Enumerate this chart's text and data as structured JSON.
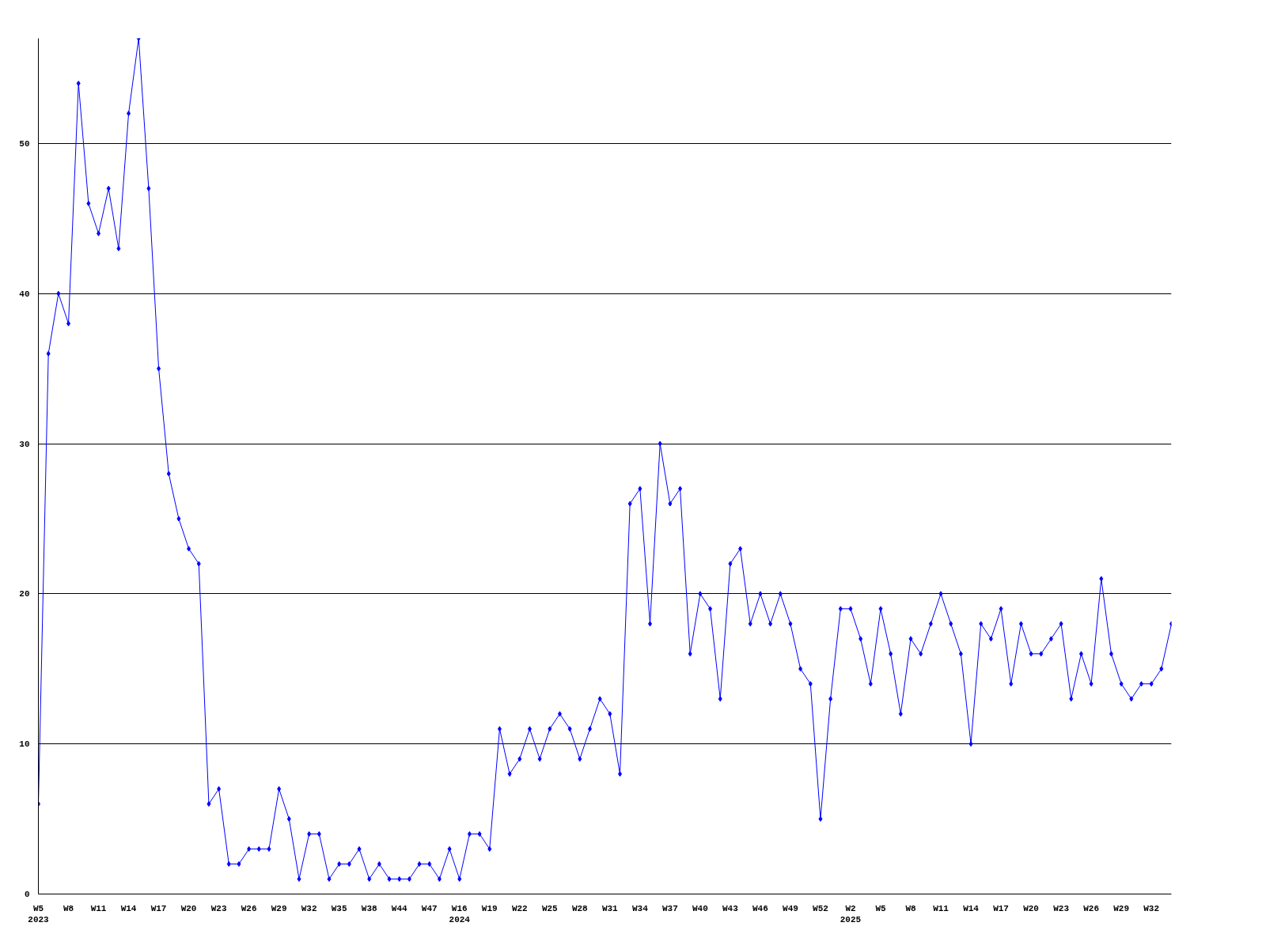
{
  "chart_data": {
    "type": "line",
    "categories": [
      "W5\n2023",
      null,
      null,
      "W8",
      null,
      null,
      "W11",
      null,
      null,
      "W14",
      null,
      null,
      "W17",
      null,
      null,
      "W20",
      null,
      null,
      "W23",
      null,
      null,
      "W26",
      null,
      null,
      "W29",
      null,
      null,
      "W32",
      null,
      null,
      "W35",
      null,
      null,
      "W38",
      null,
      null,
      "W44",
      null,
      null,
      "W47",
      null,
      null,
      "W16\n2024",
      null,
      null,
      "W19",
      null,
      null,
      "W22",
      null,
      null,
      "W25",
      null,
      null,
      "W28",
      null,
      null,
      "W31",
      null,
      null,
      "W34",
      null,
      null,
      "W37",
      null,
      null,
      "W40",
      null,
      null,
      "W43",
      null,
      null,
      "W46",
      null,
      null,
      "W49",
      null,
      null,
      "W52",
      null,
      null,
      "W2\n2025",
      null,
      null,
      "W5",
      null,
      null,
      "W8",
      null,
      null,
      "W11",
      null,
      null,
      "W14",
      null,
      null,
      "W17",
      null,
      null,
      "W20",
      null,
      null,
      "W23",
      null,
      null,
      "W26",
      null,
      null,
      "W29",
      null,
      null,
      "W32",
      null,
      null
    ],
    "series": [
      {
        "color": "#0000ff",
        "values": [
          6,
          36,
          40,
          38,
          54,
          46,
          44,
          47,
          43,
          52,
          57,
          47,
          35,
          28,
          25,
          23,
          22,
          6,
          7,
          2,
          2,
          3,
          3,
          3,
          7,
          5,
          1,
          4,
          4,
          1,
          2,
          2,
          3,
          1,
          2,
          1,
          1,
          1,
          2,
          2,
          1,
          3,
          1,
          4,
          4,
          3,
          11,
          8,
          9,
          11,
          9,
          11,
          12,
          11,
          9,
          11,
          13,
          12,
          8,
          26,
          27,
          18,
          30,
          26,
          27,
          16,
          20,
          19,
          13,
          22,
          23,
          18,
          20,
          18,
          20,
          18,
          15,
          14,
          5,
          13,
          19,
          19,
          17,
          14,
          19,
          16,
          12,
          17,
          16,
          18,
          20,
          18,
          16,
          10,
          18,
          17,
          19,
          14,
          18,
          16,
          16,
          17,
          18,
          13,
          16,
          14,
          21,
          16,
          14,
          13,
          14,
          14,
          15,
          18
        ]
      }
    ],
    "ylim": [
      0,
      57
    ],
    "yticks": [
      0,
      10,
      20,
      30,
      40,
      50
    ],
    "grid": "y",
    "marker": "diamond",
    "line_style": "solid"
  }
}
